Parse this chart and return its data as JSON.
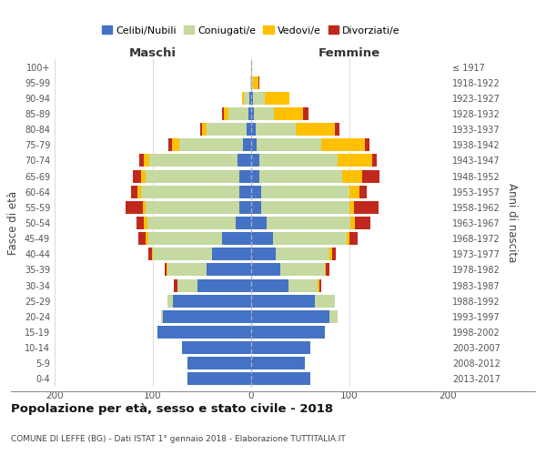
{
  "age_groups": [
    "0-4",
    "5-9",
    "10-14",
    "15-19",
    "20-24",
    "25-29",
    "30-34",
    "35-39",
    "40-44",
    "45-49",
    "50-54",
    "55-59",
    "60-64",
    "65-69",
    "70-74",
    "75-79",
    "80-84",
    "85-89",
    "90-94",
    "95-99",
    "100+"
  ],
  "birth_years": [
    "2013-2017",
    "2008-2012",
    "2003-2007",
    "1998-2002",
    "1993-1997",
    "1988-1992",
    "1983-1987",
    "1978-1982",
    "1973-1977",
    "1968-1972",
    "1963-1967",
    "1958-1962",
    "1953-1957",
    "1948-1952",
    "1943-1947",
    "1938-1942",
    "1933-1937",
    "1928-1932",
    "1923-1927",
    "1918-1922",
    "≤ 1917"
  ],
  "male": {
    "celibi": [
      65,
      65,
      70,
      95,
      90,
      80,
      55,
      45,
      40,
      30,
      16,
      12,
      12,
      12,
      14,
      8,
      5,
      3,
      2,
      0,
      0
    ],
    "coniugati": [
      0,
      0,
      0,
      0,
      2,
      5,
      20,
      40,
      60,
      75,
      90,
      95,
      100,
      95,
      90,
      65,
      40,
      20,
      5,
      1,
      0
    ],
    "vedovi": [
      0,
      0,
      0,
      0,
      0,
      0,
      0,
      1,
      1,
      2,
      3,
      3,
      4,
      5,
      5,
      8,
      5,
      5,
      2,
      0,
      0
    ],
    "divorziati": [
      0,
      0,
      0,
      0,
      0,
      0,
      4,
      2,
      4,
      8,
      8,
      18,
      6,
      8,
      5,
      3,
      2,
      2,
      0,
      0,
      0
    ]
  },
  "female": {
    "nubili": [
      60,
      55,
      60,
      75,
      80,
      65,
      38,
      30,
      25,
      22,
      16,
      10,
      10,
      8,
      8,
      6,
      5,
      3,
      2,
      0,
      0
    ],
    "coniugate": [
      0,
      0,
      0,
      0,
      8,
      20,
      30,
      45,
      55,
      75,
      85,
      90,
      90,
      85,
      80,
      65,
      40,
      20,
      12,
      2,
      0
    ],
    "vedove": [
      0,
      0,
      0,
      0,
      0,
      0,
      1,
      1,
      2,
      3,
      5,
      5,
      10,
      20,
      35,
      45,
      40,
      30,
      25,
      5,
      1
    ],
    "divorziate": [
      0,
      0,
      0,
      0,
      0,
      0,
      2,
      4,
      4,
      8,
      15,
      25,
      8,
      18,
      5,
      4,
      5,
      5,
      0,
      1,
      0
    ]
  },
  "colors": {
    "celibi": "#4472c4",
    "coniugati": "#c5d9a0",
    "vedovi": "#ffc000",
    "divorziati": "#c0281e"
  },
  "title": "Popolazione per età, sesso e stato civile - 2018",
  "subtitle": "COMUNE DI LEFFE (BG) - Dati ISTAT 1° gennaio 2018 - Elaborazione TUTTITALIA.IT",
  "xlabel_left": "Maschi",
  "xlabel_right": "Femmine",
  "ylabel": "Fasce di età",
  "ylabel_right": "Anni di nascita",
  "xlim": 200,
  "legend_labels": [
    "Celibi/Nubili",
    "Coniugati/e",
    "Vedovi/e",
    "Divorziati/e"
  ],
  "background_color": "#ffffff",
  "grid_color": "#cccccc"
}
